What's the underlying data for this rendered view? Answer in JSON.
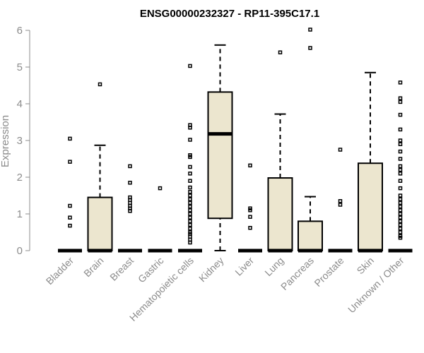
{
  "chart_data": {
    "type": "boxplot",
    "title": "ENSG00000232327 - RP11-395C17.1",
    "ylabel": "Expression",
    "xlabel": "",
    "ylim": [
      0,
      6
    ],
    "yticks": [
      0,
      1,
      2,
      3,
      4,
      5,
      6
    ],
    "grid": false,
    "box_color": "#ece6cf",
    "categories": [
      "Bladder",
      "Brain",
      "Breast",
      "Gastric",
      "Hematopoietic cells",
      "Kidney",
      "Liver",
      "Lung",
      "Pancreas",
      "Prostate",
      "Skin",
      "Unknown / Other"
    ],
    "boxes": [
      {
        "category": "Bladder",
        "min": 0,
        "q1": 0,
        "median": 0,
        "q3": 0,
        "max": 0,
        "outliers": [
          3.05,
          2.42,
          1.22,
          0.9,
          0.68
        ]
      },
      {
        "category": "Brain",
        "min": 0,
        "q1": 0,
        "median": 0,
        "q3": 1.45,
        "max": 2.87,
        "outliers": [
          4.53
        ]
      },
      {
        "category": "Breast",
        "min": 0,
        "q1": 0,
        "median": 0,
        "q3": 0,
        "max": 0,
        "outliers": [
          2.3,
          1.85,
          1.45,
          1.38,
          1.3,
          1.22,
          1.15,
          1.08
        ]
      },
      {
        "category": "Gastric",
        "min": 0,
        "q1": 0,
        "median": 0,
        "q3": 0,
        "max": 0,
        "outliers": [
          1.7
        ]
      },
      {
        "category": "Hematopoietic cells",
        "min": 0,
        "q1": 0,
        "median": 0,
        "q3": 0,
        "max": 0,
        "outliers": [
          5.03,
          3.42,
          3.35,
          3.02,
          2.6,
          2.55,
          2.28,
          2.1,
          1.9,
          1.72,
          1.6,
          1.5,
          1.4,
          1.3,
          1.2,
          1.1,
          1.0,
          0.9,
          0.8,
          0.7,
          0.6,
          0.5,
          0.45,
          0.38,
          0.3,
          0.22
        ]
      },
      {
        "category": "Kidney",
        "min": 0,
        "q1": 0.88,
        "median": 3.18,
        "q3": 4.32,
        "max": 5.6,
        "outliers": []
      },
      {
        "category": "Liver",
        "min": 0,
        "q1": 0,
        "median": 0,
        "q3": 0,
        "max": 0,
        "outliers": [
          2.32,
          1.15,
          1.1,
          0.92,
          0.62
        ]
      },
      {
        "category": "Lung",
        "min": 0,
        "q1": 0,
        "median": 0,
        "q3": 1.98,
        "max": 3.72,
        "outliers": [
          5.4
        ]
      },
      {
        "category": "Pancreas",
        "min": 0,
        "q1": 0,
        "median": 0,
        "q3": 0.8,
        "max": 1.47,
        "outliers": [
          6.02,
          5.52
        ]
      },
      {
        "category": "Prostate",
        "min": 0,
        "q1": 0,
        "median": 0,
        "q3": 0,
        "max": 0,
        "outliers": [
          2.75,
          1.35,
          1.25
        ]
      },
      {
        "category": "Skin",
        "min": 0,
        "q1": 0,
        "median": 0,
        "q3": 2.38,
        "max": 4.85,
        "outliers": []
      },
      {
        "category": "Unknown / Other",
        "min": 0,
        "q1": 0,
        "median": 0,
        "q3": 0,
        "max": 0,
        "outliers": [
          4.58,
          4.15,
          4.05,
          3.7,
          3.3,
          3.0,
          2.9,
          2.7,
          2.5,
          2.3,
          2.2,
          2.1,
          1.9,
          1.7,
          1.5,
          1.4,
          1.3,
          1.2,
          1.1,
          1.0,
          0.9,
          0.8,
          0.7,
          0.6,
          0.5,
          0.4,
          0.35
        ]
      }
    ]
  }
}
